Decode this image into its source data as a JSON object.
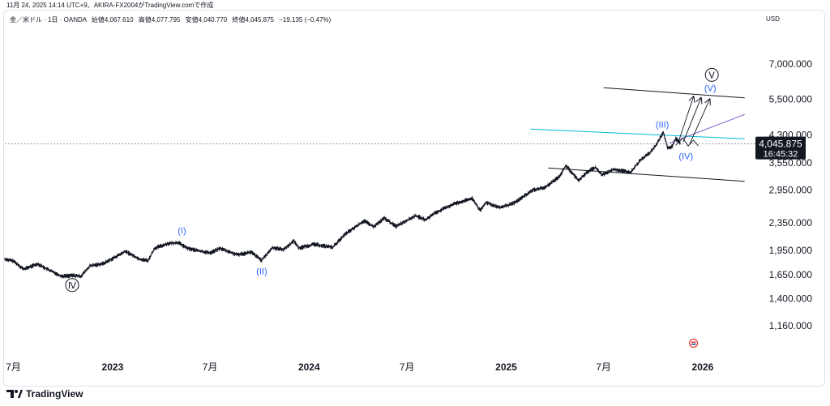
{
  "header": {
    "timestamp": "11月 24, 2025 14:14 UTC+9、AKIRA-FX2004がTradingView.comで作成"
  },
  "symbol": {
    "name": "金／米ドル · 1日 · OANDA",
    "open_label": "始値",
    "open": "4,067.610",
    "high_label": "高値",
    "high": "4,077.795",
    "low_label": "安値",
    "low": "4,040.770",
    "close_label": "終値",
    "close": "4,045.875",
    "change": "−19.135 (−0.47%)"
  },
  "currency": "USD",
  "price_badge": {
    "price": "4,045.875",
    "countdown": "16:45:32",
    "value": 4045.875
  },
  "footer": {
    "logo_text": "TradingView"
  },
  "colors": {
    "candles": "#131722",
    "wave_labels": "#2962ff",
    "cyan_line": "#00bcd4",
    "purple_line": "#7e57c2",
    "channel": "#131722",
    "badge_bg": "#131722"
  },
  "chart_data": {
    "type": "line",
    "title": "",
    "xlabel": "",
    "ylabel": "",
    "scale": "log",
    "ylim": [
      950,
      9300
    ],
    "xlim": [
      "2022-06-15",
      "2026-04-15"
    ],
    "y_ticks": [
      "7,000.000",
      "5,500.000",
      "4,300.000",
      "3,550.000",
      "2,950.000",
      "2,350.000",
      "1,950.000",
      "1,650.000",
      "1,400.000",
      "1,160.000"
    ],
    "y_tick_values": [
      7000,
      5500,
      4300,
      3550,
      2950,
      2350,
      1950,
      1650,
      1400,
      1160
    ],
    "x_ticks": [
      {
        "date": "2022-07-01",
        "label": "7月",
        "bold": false
      },
      {
        "date": "2023-01-01",
        "label": "2023",
        "bold": true
      },
      {
        "date": "2023-07-01",
        "label": "7月",
        "bold": false
      },
      {
        "date": "2024-01-01",
        "label": "2024",
        "bold": true
      },
      {
        "date": "2024-07-01",
        "label": "7月",
        "bold": false
      },
      {
        "date": "2025-01-01",
        "label": "2025",
        "bold": true
      },
      {
        "date": "2025-07-01",
        "label": "7月",
        "bold": false
      },
      {
        "date": "2026-01-01",
        "label": "2026",
        "bold": true
      }
    ],
    "series": [
      {
        "points": [
          [
            "2022-06-15",
            1835
          ],
          [
            "2022-07-01",
            1810
          ],
          [
            "2022-07-20",
            1712
          ],
          [
            "2022-08-15",
            1775
          ],
          [
            "2022-09-01",
            1715
          ],
          [
            "2022-09-28",
            1632
          ],
          [
            "2022-10-20",
            1640
          ],
          [
            "2022-11-03",
            1630
          ],
          [
            "2022-11-20",
            1750
          ],
          [
            "2022-12-15",
            1780
          ],
          [
            "2023-01-10",
            1875
          ],
          [
            "2023-01-25",
            1935
          ],
          [
            "2023-02-20",
            1835
          ],
          [
            "2023-03-08",
            1815
          ],
          [
            "2023-03-20",
            1975
          ],
          [
            "2023-04-13",
            2040
          ],
          [
            "2023-05-03",
            2055
          ],
          [
            "2023-05-20",
            1975
          ],
          [
            "2023-06-15",
            1935
          ],
          [
            "2023-07-01",
            1915
          ],
          [
            "2023-07-20",
            1975
          ],
          [
            "2023-08-20",
            1890
          ],
          [
            "2023-09-15",
            1925
          ],
          [
            "2023-10-05",
            1820
          ],
          [
            "2023-10-25",
            1985
          ],
          [
            "2023-11-15",
            1960
          ],
          [
            "2023-12-04",
            2080
          ],
          [
            "2023-12-13",
            1980
          ],
          [
            "2024-01-10",
            2030
          ],
          [
            "2024-02-14",
            1990
          ],
          [
            "2024-03-08",
            2175
          ],
          [
            "2024-04-12",
            2385
          ],
          [
            "2024-04-30",
            2290
          ],
          [
            "2024-05-20",
            2430
          ],
          [
            "2024-06-10",
            2300
          ],
          [
            "2024-07-17",
            2470
          ],
          [
            "2024-08-05",
            2400
          ],
          [
            "2024-08-20",
            2510
          ],
          [
            "2024-09-26",
            2680
          ],
          [
            "2024-10-30",
            2780
          ],
          [
            "2024-11-14",
            2560
          ],
          [
            "2024-11-25",
            2710
          ],
          [
            "2024-12-20",
            2610
          ],
          [
            "2025-01-15",
            2690
          ],
          [
            "2025-02-20",
            2950
          ],
          [
            "2025-03-15",
            3000
          ],
          [
            "2025-04-10",
            3240
          ],
          [
            "2025-04-22",
            3490
          ],
          [
            "2025-05-15",
            3150
          ],
          [
            "2025-06-05",
            3375
          ],
          [
            "2025-06-16",
            3440
          ],
          [
            "2025-06-28",
            3270
          ],
          [
            "2025-07-20",
            3400
          ],
          [
            "2025-08-20",
            3330
          ],
          [
            "2025-09-10",
            3660
          ],
          [
            "2025-09-25",
            3800
          ],
          [
            "2025-10-08",
            4050
          ],
          [
            "2025-10-20",
            4380
          ],
          [
            "2025-10-28",
            3930
          ],
          [
            "2025-11-05",
            3970
          ],
          [
            "2025-11-12",
            4200
          ],
          [
            "2025-11-21",
            4046
          ]
        ]
      }
    ],
    "wave_labels": [
      {
        "text": "(I)",
        "date": "2023-05-10",
        "value": 2230,
        "circled": false
      },
      {
        "text": "(II)",
        "date": "2023-10-05",
        "value": 1690,
        "circled": false
      },
      {
        "text": "(III)",
        "date": "2025-10-18",
        "value": 4620,
        "circled": false
      },
      {
        "text": "(IV)",
        "date": "2025-12-01",
        "value": 3720,
        "circled": false
      },
      {
        "text": "(V)",
        "date": "2026-01-15",
        "value": 5950,
        "circled": false
      },
      {
        "text": "Ⅳ",
        "date": "2022-10-18",
        "value": 1535,
        "circled": true
      },
      {
        "text": "Ⅴ",
        "date": "2026-01-18",
        "value": 6500,
        "circled": true
      }
    ],
    "trend_lines": [
      {
        "name": "upper-channel",
        "kind": "channel",
        "from": [
          "2025-07-01",
          5950
        ],
        "to": [
          "2026-03-20",
          5550
        ]
      },
      {
        "name": "lower-channel",
        "kind": "channel",
        "from": [
          "2025-03-20",
          3430
        ],
        "to": [
          "2026-03-20",
          3130
        ]
      },
      {
        "name": "cyan-line",
        "kind": "cyan",
        "from": [
          "2025-02-15",
          4480
        ],
        "to": [
          "2026-03-20",
          4190
        ]
      },
      {
        "name": "purple-line",
        "kind": "purple",
        "from": [
          "2025-11-01",
          4070
        ],
        "to": [
          "2026-03-20",
          4950
        ]
      }
    ],
    "projection_arrows": [
      {
        "from": [
          "2025-11-16",
          4060
        ],
        "to": [
          "2025-12-15",
          5600
        ]
      },
      {
        "from": [
          "2025-11-26",
          4100
        ],
        "to": [
          "2025-12-29",
          5550
        ]
      },
      {
        "from": [
          "2025-12-08",
          4050
        ],
        "to": [
          "2026-01-14",
          5500
        ]
      }
    ],
    "zigzag": [
      [
        "2025-11-12",
        4010
      ],
      [
        "2025-11-25",
        4210
      ],
      [
        "2025-12-05",
        3990
      ],
      [
        "2025-12-15",
        4150
      ],
      [
        "2025-12-24",
        3990
      ]
    ],
    "event_marker": {
      "date": "2025-12-15",
      "value": 1030
    }
  }
}
